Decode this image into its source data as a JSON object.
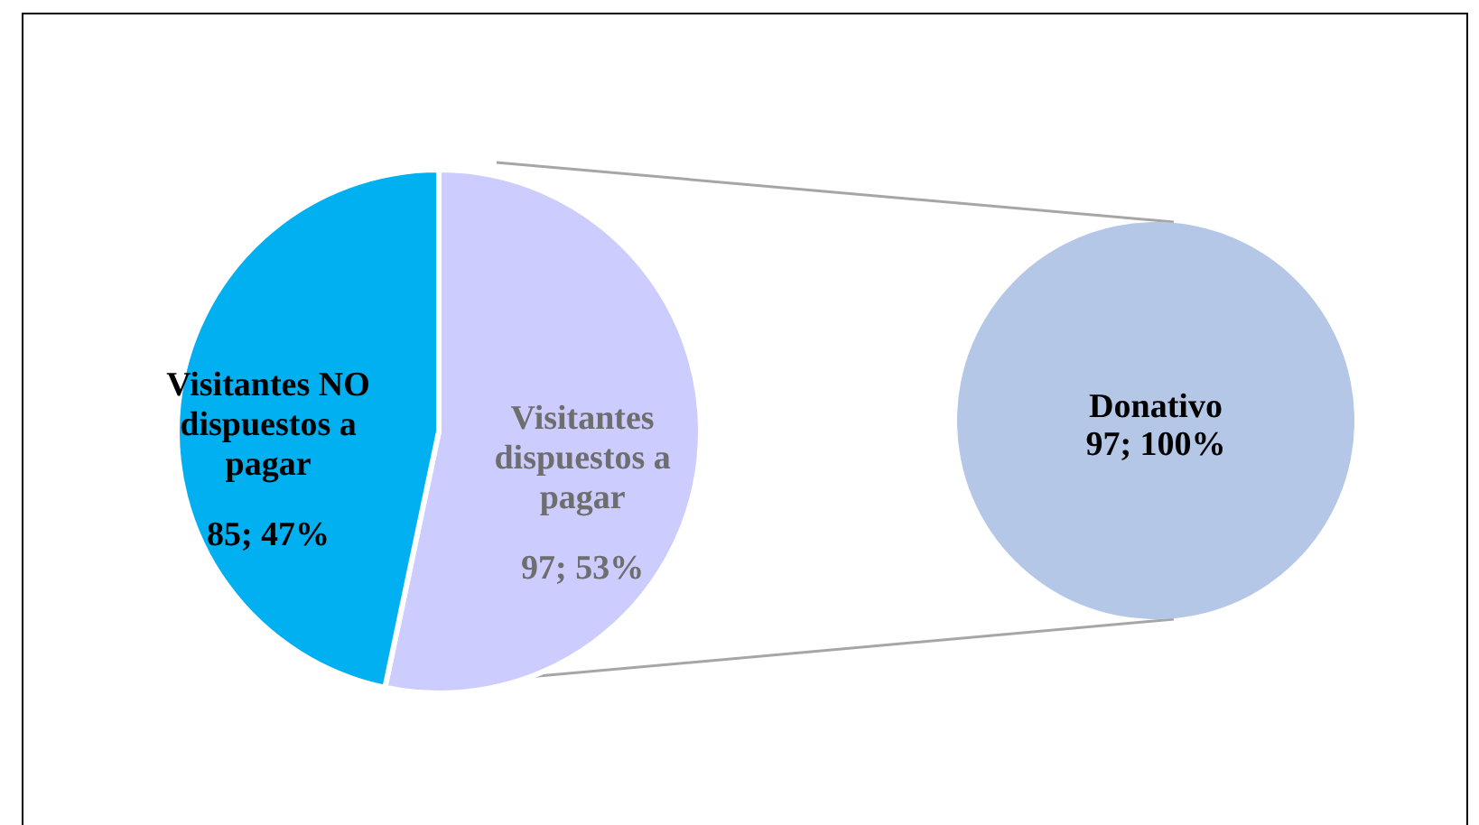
{
  "chart_data": [
    {
      "type": "pie",
      "categories": [
        "Visitantes dispuestos a pagar",
        "Visitantes NO dispuestos a pagar"
      ],
      "values": [
        97,
        85
      ],
      "colors": [
        "#ccccff",
        "#00b0f0"
      ],
      "value_labels": [
        "97; 53%",
        "85; 47%"
      ]
    },
    {
      "type": "pie",
      "categories": [
        "Donativo"
      ],
      "values": [
        97
      ],
      "colors": [
        "#b4c7e7"
      ],
      "value_labels": [
        "97; 100%"
      ]
    }
  ]
}
